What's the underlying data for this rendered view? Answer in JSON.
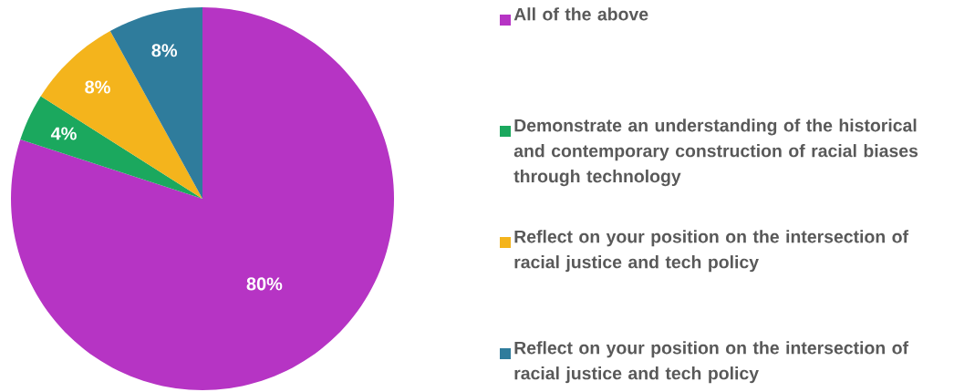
{
  "chart_data": {
    "type": "pie",
    "categories": [
      "All of the above",
      "Demonstrate an understanding of the historical and contemporary construction of racial biases through technology",
      "Reflect on your position on the intersection of racial justice and tech policy",
      "Reflect on your position on the intersection of racial justice and tech policy"
    ],
    "values": [
      80,
      4,
      8,
      8
    ],
    "value_labels": [
      "80%",
      "4%",
      "8%",
      "8%"
    ],
    "colors": [
      "#b634c4",
      "#1ba85e",
      "#f4b41c",
      "#2f7c9c"
    ],
    "legend": "right"
  }
}
